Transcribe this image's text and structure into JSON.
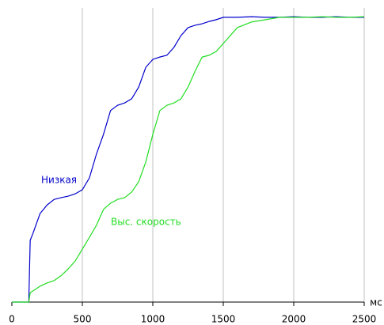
{
  "chart_data": {
    "type": "line",
    "x_unit": "мс",
    "x": [
      0,
      120,
      130,
      150,
      200,
      250,
      300,
      350,
      400,
      450,
      500,
      550,
      600,
      650,
      700,
      750,
      800,
      850,
      900,
      950,
      1000,
      1050,
      1100,
      1150,
      1200,
      1250,
      1300,
      1350,
      1400,
      1450,
      1500,
      1600,
      1700,
      1800,
      1900,
      2000,
      2100,
      2200,
      2300,
      2400,
      2500
    ],
    "series": [
      {
        "name": "Низкая",
        "color": "#0000cc",
        "values": [
          0,
          0,
          21,
          23.4,
          30.1,
          33,
          34.9,
          35.5,
          36.0,
          36.8,
          38.2,
          42.2,
          50.3,
          57.0,
          65.1,
          66.9,
          67.7,
          69.1,
          73.1,
          79.8,
          82.5,
          83.3,
          83.9,
          86.6,
          90.6,
          93.3,
          94.1,
          94.6,
          95.4,
          96.0,
          96.8,
          96.8,
          97.0,
          96.8,
          96.8,
          97.0,
          96.8,
          96.8,
          97.0,
          96.8,
          96.8
        ]
      },
      {
        "name": "Выс. скорость",
        "color": "#22dd22",
        "values": [
          0,
          0,
          3.2,
          3.8,
          5.4,
          6.5,
          7.3,
          9,
          11.3,
          14.0,
          18.0,
          22.0,
          26.1,
          31.5,
          33.6,
          34.9,
          35.5,
          37.4,
          40.9,
          47.6,
          57.0,
          65.1,
          66.9,
          67.7,
          69.1,
          73.1,
          78.5,
          83.3,
          83.9,
          85.2,
          87.9,
          93.3,
          95.2,
          96.0,
          96.8,
          96.8,
          96.8,
          97.0,
          96.8,
          96.8,
          97.0
        ]
      }
    ],
    "xlim": [
      0,
      2500
    ],
    "xticks": [
      0,
      500,
      1000,
      1500,
      2000,
      2500
    ],
    "ylim": [
      0,
      100
    ],
    "grid": true
  }
}
